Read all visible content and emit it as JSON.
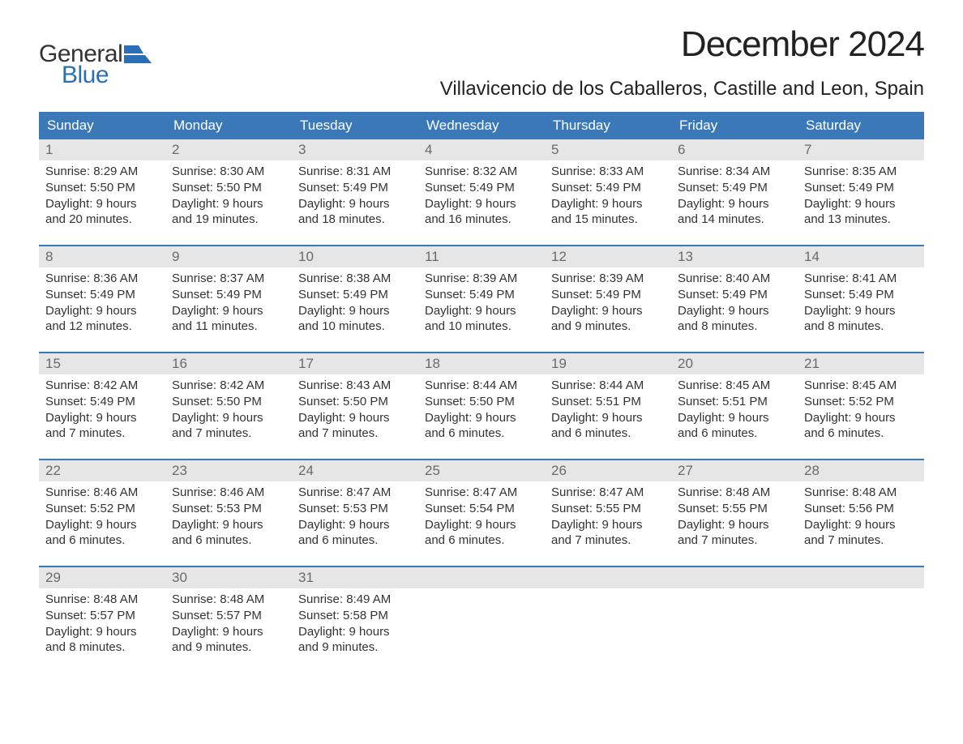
{
  "brand": {
    "text_general": "General",
    "text_blue": "Blue",
    "logo_color": "#2a6fb5"
  },
  "title": "December 2024",
  "location": "Villavicencio de los Caballeros, Castille and Leon, Spain",
  "colors": {
    "header_bg": "#3b78b8",
    "header_text": "#ffffff",
    "daynum_bg": "#e6e6e6",
    "daynum_text": "#6a6a6a",
    "week_border": "#3b78b8",
    "body_text": "#333333",
    "background": "#ffffff"
  },
  "day_headers": [
    "Sunday",
    "Monday",
    "Tuesday",
    "Wednesday",
    "Thursday",
    "Friday",
    "Saturday"
  ],
  "weeks": [
    [
      {
        "n": "1",
        "sunrise": "Sunrise: 8:29 AM",
        "sunset": "Sunset: 5:50 PM",
        "daylight": "Daylight: 9 hours and 20 minutes."
      },
      {
        "n": "2",
        "sunrise": "Sunrise: 8:30 AM",
        "sunset": "Sunset: 5:50 PM",
        "daylight": "Daylight: 9 hours and 19 minutes."
      },
      {
        "n": "3",
        "sunrise": "Sunrise: 8:31 AM",
        "sunset": "Sunset: 5:49 PM",
        "daylight": "Daylight: 9 hours and 18 minutes."
      },
      {
        "n": "4",
        "sunrise": "Sunrise: 8:32 AM",
        "sunset": "Sunset: 5:49 PM",
        "daylight": "Daylight: 9 hours and 16 minutes."
      },
      {
        "n": "5",
        "sunrise": "Sunrise: 8:33 AM",
        "sunset": "Sunset: 5:49 PM",
        "daylight": "Daylight: 9 hours and 15 minutes."
      },
      {
        "n": "6",
        "sunrise": "Sunrise: 8:34 AM",
        "sunset": "Sunset: 5:49 PM",
        "daylight": "Daylight: 9 hours and 14 minutes."
      },
      {
        "n": "7",
        "sunrise": "Sunrise: 8:35 AM",
        "sunset": "Sunset: 5:49 PM",
        "daylight": "Daylight: 9 hours and 13 minutes."
      }
    ],
    [
      {
        "n": "8",
        "sunrise": "Sunrise: 8:36 AM",
        "sunset": "Sunset: 5:49 PM",
        "daylight": "Daylight: 9 hours and 12 minutes."
      },
      {
        "n": "9",
        "sunrise": "Sunrise: 8:37 AM",
        "sunset": "Sunset: 5:49 PM",
        "daylight": "Daylight: 9 hours and 11 minutes."
      },
      {
        "n": "10",
        "sunrise": "Sunrise: 8:38 AM",
        "sunset": "Sunset: 5:49 PM",
        "daylight": "Daylight: 9 hours and 10 minutes."
      },
      {
        "n": "11",
        "sunrise": "Sunrise: 8:39 AM",
        "sunset": "Sunset: 5:49 PM",
        "daylight": "Daylight: 9 hours and 10 minutes."
      },
      {
        "n": "12",
        "sunrise": "Sunrise: 8:39 AM",
        "sunset": "Sunset: 5:49 PM",
        "daylight": "Daylight: 9 hours and 9 minutes."
      },
      {
        "n": "13",
        "sunrise": "Sunrise: 8:40 AM",
        "sunset": "Sunset: 5:49 PM",
        "daylight": "Daylight: 9 hours and 8 minutes."
      },
      {
        "n": "14",
        "sunrise": "Sunrise: 8:41 AM",
        "sunset": "Sunset: 5:49 PM",
        "daylight": "Daylight: 9 hours and 8 minutes."
      }
    ],
    [
      {
        "n": "15",
        "sunrise": "Sunrise: 8:42 AM",
        "sunset": "Sunset: 5:49 PM",
        "daylight": "Daylight: 9 hours and 7 minutes."
      },
      {
        "n": "16",
        "sunrise": "Sunrise: 8:42 AM",
        "sunset": "Sunset: 5:50 PM",
        "daylight": "Daylight: 9 hours and 7 minutes."
      },
      {
        "n": "17",
        "sunrise": "Sunrise: 8:43 AM",
        "sunset": "Sunset: 5:50 PM",
        "daylight": "Daylight: 9 hours and 7 minutes."
      },
      {
        "n": "18",
        "sunrise": "Sunrise: 8:44 AM",
        "sunset": "Sunset: 5:50 PM",
        "daylight": "Daylight: 9 hours and 6 minutes."
      },
      {
        "n": "19",
        "sunrise": "Sunrise: 8:44 AM",
        "sunset": "Sunset: 5:51 PM",
        "daylight": "Daylight: 9 hours and 6 minutes."
      },
      {
        "n": "20",
        "sunrise": "Sunrise: 8:45 AM",
        "sunset": "Sunset: 5:51 PM",
        "daylight": "Daylight: 9 hours and 6 minutes."
      },
      {
        "n": "21",
        "sunrise": "Sunrise: 8:45 AM",
        "sunset": "Sunset: 5:52 PM",
        "daylight": "Daylight: 9 hours and 6 minutes."
      }
    ],
    [
      {
        "n": "22",
        "sunrise": "Sunrise: 8:46 AM",
        "sunset": "Sunset: 5:52 PM",
        "daylight": "Daylight: 9 hours and 6 minutes."
      },
      {
        "n": "23",
        "sunrise": "Sunrise: 8:46 AM",
        "sunset": "Sunset: 5:53 PM",
        "daylight": "Daylight: 9 hours and 6 minutes."
      },
      {
        "n": "24",
        "sunrise": "Sunrise: 8:47 AM",
        "sunset": "Sunset: 5:53 PM",
        "daylight": "Daylight: 9 hours and 6 minutes."
      },
      {
        "n": "25",
        "sunrise": "Sunrise: 8:47 AM",
        "sunset": "Sunset: 5:54 PM",
        "daylight": "Daylight: 9 hours and 6 minutes."
      },
      {
        "n": "26",
        "sunrise": "Sunrise: 8:47 AM",
        "sunset": "Sunset: 5:55 PM",
        "daylight": "Daylight: 9 hours and 7 minutes."
      },
      {
        "n": "27",
        "sunrise": "Sunrise: 8:48 AM",
        "sunset": "Sunset: 5:55 PM",
        "daylight": "Daylight: 9 hours and 7 minutes."
      },
      {
        "n": "28",
        "sunrise": "Sunrise: 8:48 AM",
        "sunset": "Sunset: 5:56 PM",
        "daylight": "Daylight: 9 hours and 7 minutes."
      }
    ],
    [
      {
        "n": "29",
        "sunrise": "Sunrise: 8:48 AM",
        "sunset": "Sunset: 5:57 PM",
        "daylight": "Daylight: 9 hours and 8 minutes."
      },
      {
        "n": "30",
        "sunrise": "Sunrise: 8:48 AM",
        "sunset": "Sunset: 5:57 PM",
        "daylight": "Daylight: 9 hours and 9 minutes."
      },
      {
        "n": "31",
        "sunrise": "Sunrise: 8:49 AM",
        "sunset": "Sunset: 5:58 PM",
        "daylight": "Daylight: 9 hours and 9 minutes."
      },
      null,
      null,
      null,
      null
    ]
  ]
}
